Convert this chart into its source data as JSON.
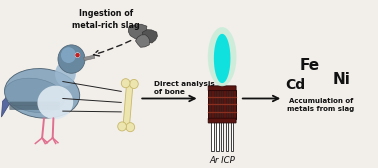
{
  "bg_color": "#f2eeea",
  "ingestion_text": "Ingestion of\nmetal-rich slag",
  "bone_text": "Direct analysis\nof bone",
  "ar_icp_text": "Ar ICP",
  "fe_text": "Fe",
  "ni_text": "Ni",
  "cd_text": "Cd",
  "accum_text": "Accumulation of\nmetals from slag",
  "arrow_color": "#111111",
  "dashed_arrow_color": "#222222",
  "torch_body_color": "#ffffff",
  "torch_outline_color": "#222222",
  "torch_coil_color": "#5a1510",
  "torch_coil_edge": "#2a0808",
  "flame_outer_color": "#c8edd8",
  "flame_inner_color": "#00e0e0",
  "bone_color": "#ede5b0",
  "bone_edge_color": "#c8b86a",
  "slag_color1": "#666666",
  "slag_color2": "#555555",
  "slag_color3": "#777777",
  "pigeon_body_color": "#8eaac0",
  "pigeon_wing_color": "#b0c8d8",
  "pigeon_belly_color": "#dde8f0",
  "pigeon_head_color": "#6888a0",
  "pigeon_neck_color": "#7a9ab2",
  "pigeon_tail_color": "#6070a0",
  "pigeon_dark_color": "#4a6070",
  "pigeon_leg_color": "#e07090",
  "pigeon_beak_color": "#909090",
  "pigeon_eye_color": "#cc2020"
}
